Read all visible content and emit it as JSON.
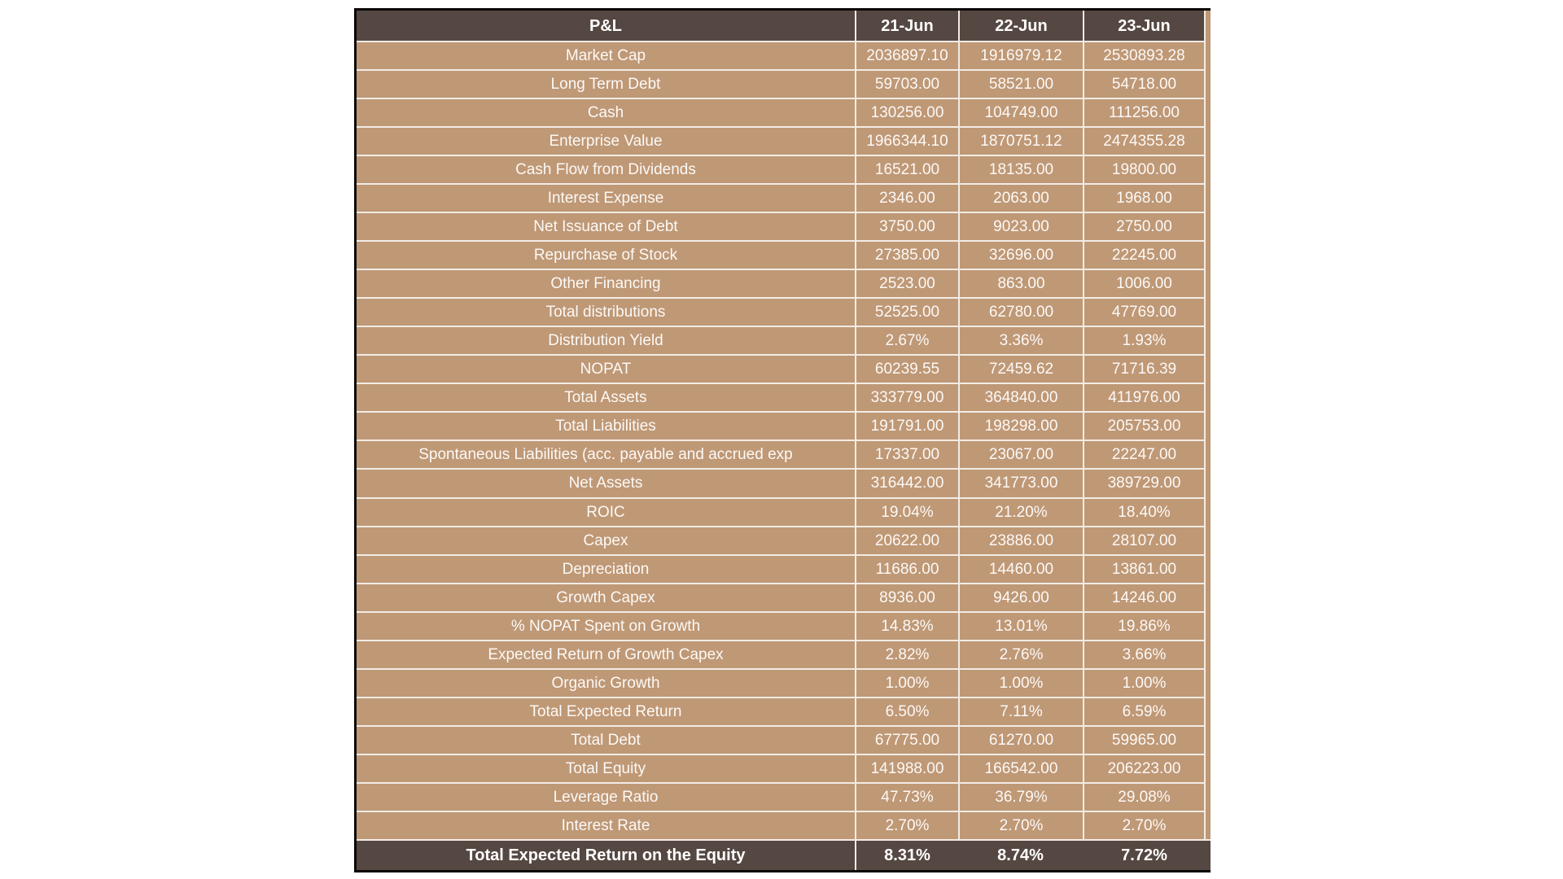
{
  "colors": {
    "header_footer_bg": "#554741",
    "row_bg": "#bf9876",
    "grid_line": "#f2ece5",
    "outer_frame": "#0a0705",
    "text": "#fcf9f6"
  },
  "table": {
    "header": {
      "label": "P&L",
      "columns": [
        "21-Jun",
        "22-Jun",
        "23-Jun"
      ]
    },
    "rows": [
      {
        "label": "Market Cap",
        "values": [
          "2036897.10",
          "1916979.12",
          "2530893.28"
        ]
      },
      {
        "label": "Long Term Debt",
        "values": [
          "59703.00",
          "58521.00",
          "54718.00"
        ]
      },
      {
        "label": "Cash",
        "values": [
          "130256.00",
          "104749.00",
          "111256.00"
        ]
      },
      {
        "label": "Enterprise Value",
        "values": [
          "1966344.10",
          "1870751.12",
          "2474355.28"
        ]
      },
      {
        "label": "Cash Flow from Dividends",
        "values": [
          "16521.00",
          "18135.00",
          "19800.00"
        ]
      },
      {
        "label": "Interest Expense",
        "values": [
          "2346.00",
          "2063.00",
          "1968.00"
        ]
      },
      {
        "label": "Net Issuance of Debt",
        "values": [
          "3750.00",
          "9023.00",
          "2750.00"
        ]
      },
      {
        "label": "Repurchase of Stock",
        "values": [
          "27385.00",
          "32696.00",
          "22245.00"
        ]
      },
      {
        "label": "Other Financing",
        "values": [
          "2523.00",
          "863.00",
          "1006.00"
        ]
      },
      {
        "label": "Total distributions",
        "values": [
          "52525.00",
          "62780.00",
          "47769.00"
        ]
      },
      {
        "label": "Distribution Yield",
        "values": [
          "2.67%",
          "3.36%",
          "1.93%"
        ]
      },
      {
        "label": "NOPAT",
        "values": [
          "60239.55",
          "72459.62",
          "71716.39"
        ]
      },
      {
        "label": "Total Assets",
        "values": [
          "333779.00",
          "364840.00",
          "411976.00"
        ]
      },
      {
        "label": "Total Liabilities",
        "values": [
          "191791.00",
          "198298.00",
          "205753.00"
        ]
      },
      {
        "label": "Spontaneous Liabilities (acc. payable and accrued exp",
        "values": [
          "17337.00",
          "23067.00",
          "22247.00"
        ]
      },
      {
        "label": "Net Assets",
        "values": [
          "316442.00",
          "341773.00",
          "389729.00"
        ]
      },
      {
        "label": "ROIC",
        "values": [
          "19.04%",
          "21.20%",
          "18.40%"
        ]
      },
      {
        "label": "Capex",
        "values": [
          "20622.00",
          "23886.00",
          "28107.00"
        ]
      },
      {
        "label": "Depreciation",
        "values": [
          "11686.00",
          "14460.00",
          "13861.00"
        ]
      },
      {
        "label": "Growth Capex",
        "values": [
          "8936.00",
          "9426.00",
          "14246.00"
        ]
      },
      {
        "label": "% NOPAT Spent on Growth",
        "values": [
          "14.83%",
          "13.01%",
          "19.86%"
        ]
      },
      {
        "label": "Expected Return of Growth Capex",
        "values": [
          "2.82%",
          "2.76%",
          "3.66%"
        ]
      },
      {
        "label": "Organic Growth",
        "values": [
          "1.00%",
          "1.00%",
          "1.00%"
        ]
      },
      {
        "label": "Total Expected Return",
        "values": [
          "6.50%",
          "7.11%",
          "6.59%"
        ]
      },
      {
        "label": "Total Debt",
        "values": [
          "67775.00",
          "61270.00",
          "59965.00"
        ]
      },
      {
        "label": "Total Equity",
        "values": [
          "141988.00",
          "166542.00",
          "206223.00"
        ]
      },
      {
        "label": "Leverage Ratio",
        "values": [
          "47.73%",
          "36.79%",
          "29.08%"
        ]
      },
      {
        "label": "Interest Rate",
        "values": [
          "2.70%",
          "2.70%",
          "2.70%"
        ]
      }
    ],
    "footer": {
      "label": "Total Expected Return on the Equity",
      "values": [
        "8.31%",
        "8.74%",
        "7.72%"
      ]
    }
  }
}
